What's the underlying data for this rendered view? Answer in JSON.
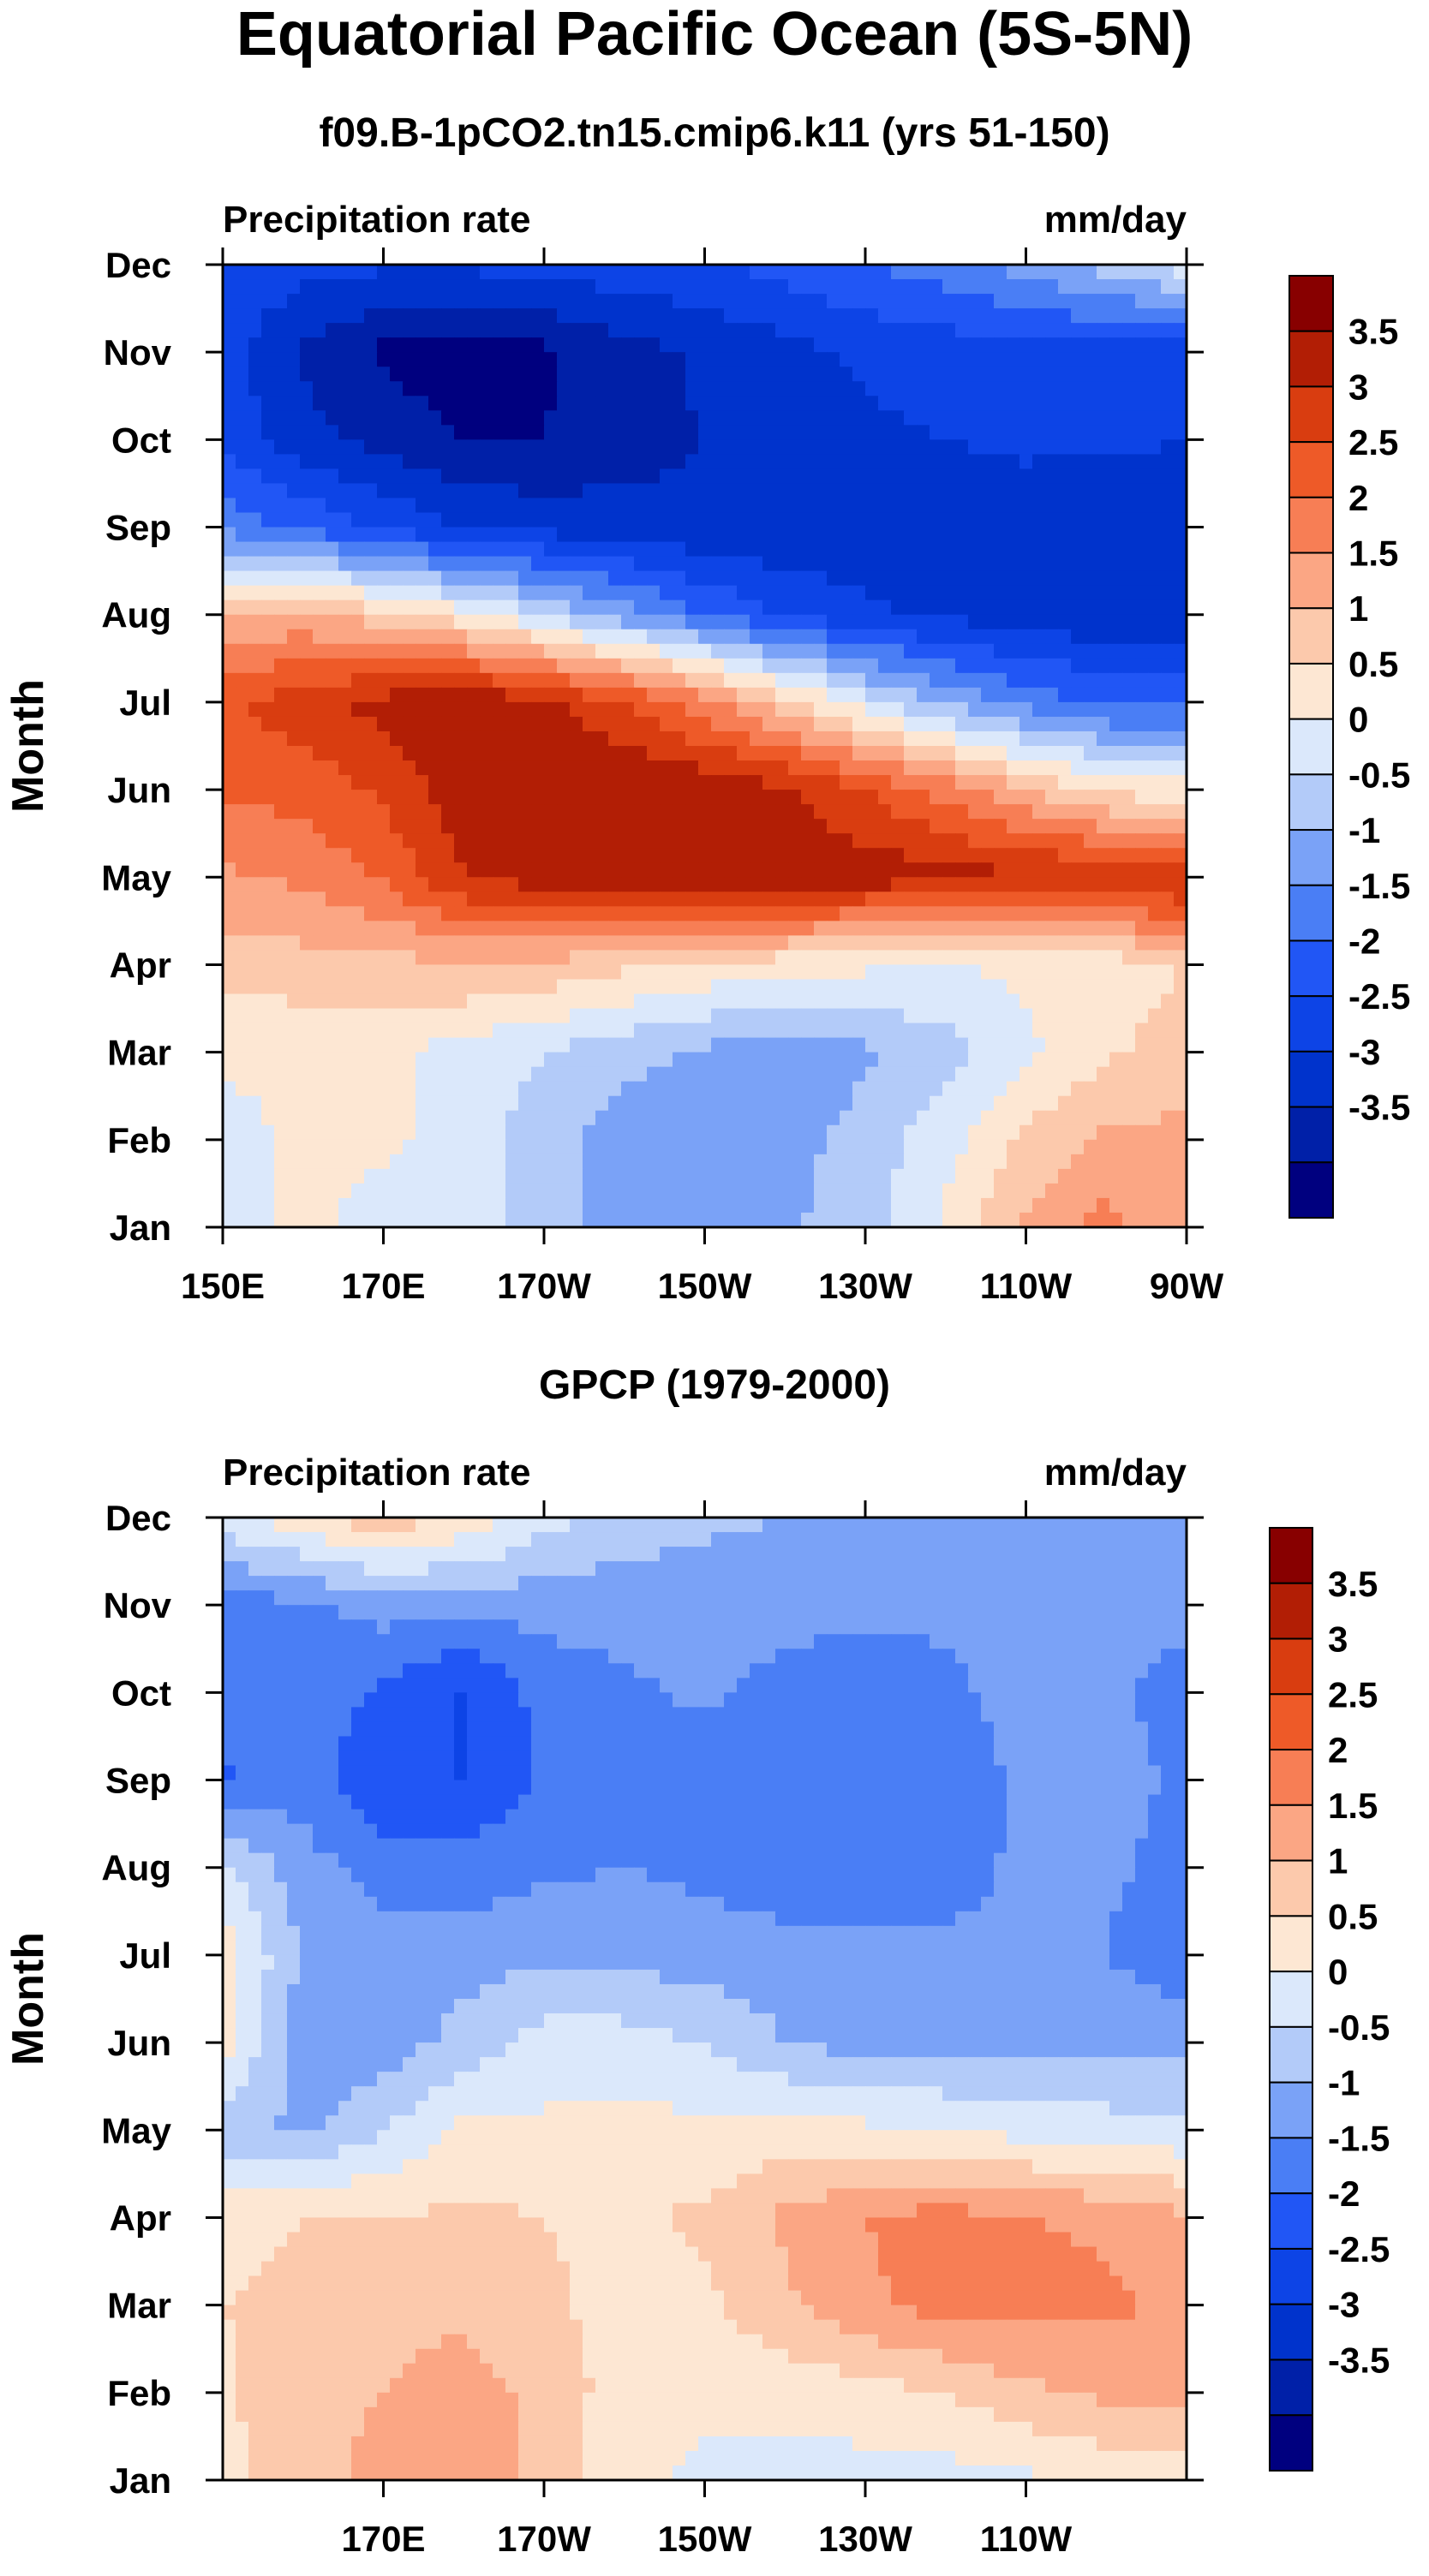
{
  "title": "Equatorial Pacific Ocean (5S-5N)",
  "chart_data": [
    {
      "type": "heatmap",
      "subtitle": "f09.B-1pCO2.tn15.cmip6.k11 (yrs 51-150)",
      "left_label": "Precipitation rate",
      "right_label": "mm/day",
      "ylabel": "Month",
      "xlabel": "",
      "x_ticks": [
        "150E",
        "170E",
        "170W",
        "150W",
        "130W",
        "110W",
        "90W"
      ],
      "y_ticks": [
        "Jan",
        "Feb",
        "Mar",
        "Apr",
        "May",
        "Jun",
        "Jul",
        "Aug",
        "Sep",
        "Oct",
        "Nov",
        "Dec"
      ],
      "x": [
        150,
        160,
        170,
        180,
        190,
        200,
        210,
        220,
        230,
        240,
        250,
        260,
        270
      ],
      "values": [
        [
          0.3,
          0.6,
          0.3,
          0.3,
          -0.3,
          -0.8,
          -0.7,
          -0.6,
          -0.2,
          0.6,
          1.6,
          2.2,
          1.6
        ],
        [
          0.3,
          0.6,
          0.6,
          0.3,
          -0.3,
          -0.8,
          -0.8,
          -0.7,
          -0.3,
          0.3,
          1.1,
          1.6,
          1.6
        ],
        [
          0.6,
          0.6,
          0.6,
          0.3,
          0.0,
          -0.3,
          -0.6,
          -0.8,
          -0.6,
          -0.2,
          0.4,
          0.9,
          1.3
        ],
        [
          1.2,
          1.3,
          1.3,
          1.5,
          1.4,
          1.1,
          0.9,
          0.7,
          0.6,
          0.5,
          0.6,
          0.7,
          1.0
        ],
        [
          1.9,
          2.1,
          2.6,
          3.5,
          3.8,
          3.9,
          3.9,
          3.9,
          3.8,
          3.7,
          3.6,
          3.6,
          3.7
        ],
        [
          2.6,
          2.7,
          3.1,
          3.8,
          4.0,
          4.0,
          3.9,
          3.6,
          3.0,
          2.3,
          1.5,
          0.8,
          0.7
        ],
        [
          2.9,
          3.3,
          3.7,
          3.9,
          3.7,
          3.0,
          2.2,
          1.2,
          0.2,
          -0.6,
          -1.2,
          -1.6,
          -1.6
        ],
        [
          1.6,
          1.6,
          1.2,
          0.7,
          0.0,
          -0.8,
          -1.5,
          -2.1,
          -2.4,
          -2.6,
          -2.8,
          -2.9,
          -2.9
        ],
        [
          -1.2,
          -1.6,
          -2.1,
          -2.5,
          -2.7,
          -2.8,
          -2.9,
          -2.9,
          -2.8,
          -2.9,
          -2.8,
          -2.9,
          -2.9
        ],
        [
          -2.1,
          -2.8,
          -3.2,
          -3.5,
          -3.5,
          -3.2,
          -3.0,
          -2.8,
          -2.6,
          -2.5,
          -2.4,
          -2.4,
          -2.5
        ],
        [
          -2.3,
          -3.1,
          -3.6,
          -3.8,
          -3.6,
          -3.2,
          -2.9,
          -2.7,
          -2.4,
          -2.3,
          -2.2,
          -2.2,
          -2.3
        ],
        [
          -2.0,
          -2.3,
          -2.4,
          -2.4,
          -2.3,
          -2.2,
          -2.1,
          -1.8,
          -1.5,
          -1.2,
          -0.8,
          -0.3,
          0.3
        ]
      ],
      "colorbar_labels": [
        "3.5",
        "3",
        "2.5",
        "2",
        "1.5",
        "1",
        "0.5",
        "0",
        "-0.5",
        "-1",
        "-1.5",
        "-2",
        "-2.5",
        "-3",
        "-3.5"
      ],
      "levels": [
        -3.5,
        -3,
        -2.5,
        -2,
        -1.5,
        -1,
        -0.5,
        0,
        0.5,
        1,
        1.5,
        2,
        2.5,
        3,
        3.5
      ],
      "colors": [
        "#00007f",
        "#0020a8",
        "#0033cc",
        "#0d44e6",
        "#2156f5",
        "#4a7ef5",
        "#7aa2f7",
        "#b3cbf9",
        "#dbe8fb",
        "#fde7d3",
        "#fcc9ac",
        "#fba684",
        "#f77e55",
        "#ee5a28",
        "#d93d10",
        "#b21e05",
        "#880000"
      ]
    },
    {
      "type": "heatmap",
      "subtitle": "GPCP (1979-2000)",
      "left_label": "Precipitation rate",
      "right_label": "mm/day",
      "ylabel": "Month",
      "xlabel": "",
      "x_ticks": [
        "170E",
        "170W",
        "150W",
        "130W",
        "110W"
      ],
      "y_ticks": [
        "Jan",
        "Feb",
        "Mar",
        "Apr",
        "May",
        "Jun",
        "Jul",
        "Aug",
        "Sep",
        "Oct",
        "Nov",
        "Dec"
      ],
      "x": [
        150,
        160,
        170,
        180,
        190,
        200,
        210,
        220,
        230,
        240,
        250,
        260,
        270
      ],
      "values": [
        [
          0.8,
          1.4,
          1.6,
          1.8,
          1.3,
          0.6,
          0.4,
          0.3,
          0.3,
          0.3,
          0.4,
          0.6,
          0.8
        ],
        [
          0.9,
          1.4,
          1.5,
          1.7,
          1.4,
          0.7,
          0.6,
          0.7,
          0.8,
          1.0,
          1.4,
          1.6,
          1.6
        ],
        [
          1.0,
          1.1,
          1.4,
          1.4,
          1.1,
          0.8,
          0.9,
          1.4,
          1.9,
          2.2,
          2.2,
          2.1,
          1.9
        ],
        [
          0.9,
          1.0,
          1.0,
          1.1,
          1.0,
          0.9,
          1.1,
          1.6,
          2.0,
          2.2,
          2.0,
          1.9,
          1.6
        ],
        [
          -0.3,
          -0.6,
          0.0,
          0.6,
          0.6,
          0.7,
          0.6,
          0.7,
          0.6,
          0.5,
          0.3,
          0.2,
          0.1
        ],
        [
          0.8,
          -0.9,
          -0.8,
          -0.3,
          0.2,
          0.2,
          0.0,
          -0.5,
          -0.7,
          -0.7,
          -0.7,
          -0.6,
          -0.7
        ],
        [
          0.8,
          -0.6,
          -0.8,
          -0.7,
          -0.6,
          -0.6,
          -0.8,
          -0.8,
          -0.9,
          -0.9,
          -0.9,
          -1.0,
          -1.4
        ],
        [
          0.1,
          -0.8,
          -1.2,
          -1.3,
          -1.1,
          -1.0,
          -1.1,
          -1.3,
          -1.3,
          -1.2,
          -0.9,
          -0.9,
          -1.2
        ],
        [
          -1.6,
          -1.2,
          -2.0,
          -2.0,
          -1.4,
          -1.0,
          -1.4,
          -1.3,
          -1.4,
          -1.3,
          -0.9,
          -0.8,
          -1.1
        ],
        [
          -1.3,
          -1.1,
          -1.6,
          -2.1,
          -1.3,
          -1.1,
          -0.9,
          -1.2,
          -1.3,
          -1.1,
          -0.8,
          -0.9,
          -1.2
        ],
        [
          -1.2,
          -1.1,
          -0.8,
          -0.8,
          -0.8,
          -0.8,
          -0.8,
          -0.8,
          -0.9,
          -0.9,
          -0.9,
          -0.9,
          -0.8
        ],
        [
          0.3,
          0.8,
          1.4,
          0.9,
          0.2,
          -0.2,
          -0.4,
          -0.5,
          -0.7,
          -0.8,
          -0.8,
          -0.8,
          -0.8
        ]
      ],
      "colorbar_labels": [
        "3.5",
        "3",
        "2.5",
        "2",
        "1.5",
        "1",
        "0.5",
        "0",
        "-0.5",
        "-1",
        "-1.5",
        "-2",
        "-2.5",
        "-3",
        "-3.5"
      ],
      "levels": [
        -3.5,
        -3,
        -2.5,
        -2,
        -1.5,
        -1,
        -0.5,
        0,
        0.5,
        1,
        1.5,
        2,
        2.5,
        3,
        3.5
      ],
      "colors": [
        "#00007f",
        "#0020a8",
        "#0033cc",
        "#0d44e6",
        "#2156f5",
        "#4a7ef5",
        "#7aa2f7",
        "#b3cbf9",
        "#dbe8fb",
        "#fde7d3",
        "#fcc9ac",
        "#fba684",
        "#f77e55",
        "#ee5a28",
        "#d93d10",
        "#b21e05",
        "#880000"
      ]
    }
  ]
}
